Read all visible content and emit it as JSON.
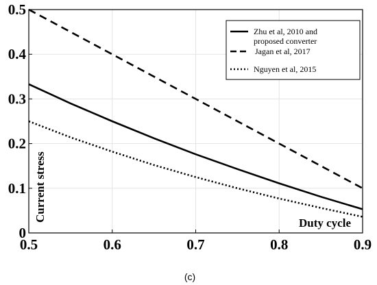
{
  "chart_data": {
    "type": "line",
    "xlabel": "Duty cycle",
    "ylabel": "Current stress",
    "caption": "(c)",
    "xlim": [
      0.5,
      0.9
    ],
    "ylim": [
      0,
      0.5
    ],
    "xticks": [
      0.5,
      0.6,
      0.7,
      0.8,
      0.9
    ],
    "yticks": [
      0,
      0.1,
      0.2,
      0.3,
      0.4,
      0.5
    ],
    "xtick_labels": [
      "0.5",
      "0.6",
      "0.7",
      "0.8",
      "0.9"
    ],
    "ytick_labels": [
      "0",
      "0.1",
      "0.2",
      "0.3",
      "0.4",
      "0.5"
    ],
    "grid": true,
    "legend_position": "top-right",
    "series": [
      {
        "name": "Zhu et al, 2010 and proposed converter",
        "style": "solid",
        "color": "#000000",
        "x": [
          0.5,
          0.55,
          0.6,
          0.65,
          0.7,
          0.75,
          0.8,
          0.85,
          0.9
        ],
        "y": [
          0.333,
          0.29,
          0.25,
          0.212,
          0.176,
          0.143,
          0.111,
          0.081,
          0.053
        ]
      },
      {
        "name": "Jagan et al, 2017",
        "style": "dashed",
        "color": "#000000",
        "x": [
          0.5,
          0.6,
          0.7,
          0.8,
          0.9
        ],
        "y": [
          0.5,
          0.4,
          0.3,
          0.2,
          0.1
        ]
      },
      {
        "name": "Nguyen et al, 2015",
        "style": "dotted",
        "color": "#000000",
        "x": [
          0.5,
          0.55,
          0.6,
          0.65,
          0.7,
          0.75,
          0.8,
          0.85,
          0.9
        ],
        "y": [
          0.25,
          0.214,
          0.182,
          0.152,
          0.125,
          0.1,
          0.077,
          0.056,
          0.036
        ]
      }
    ]
  }
}
